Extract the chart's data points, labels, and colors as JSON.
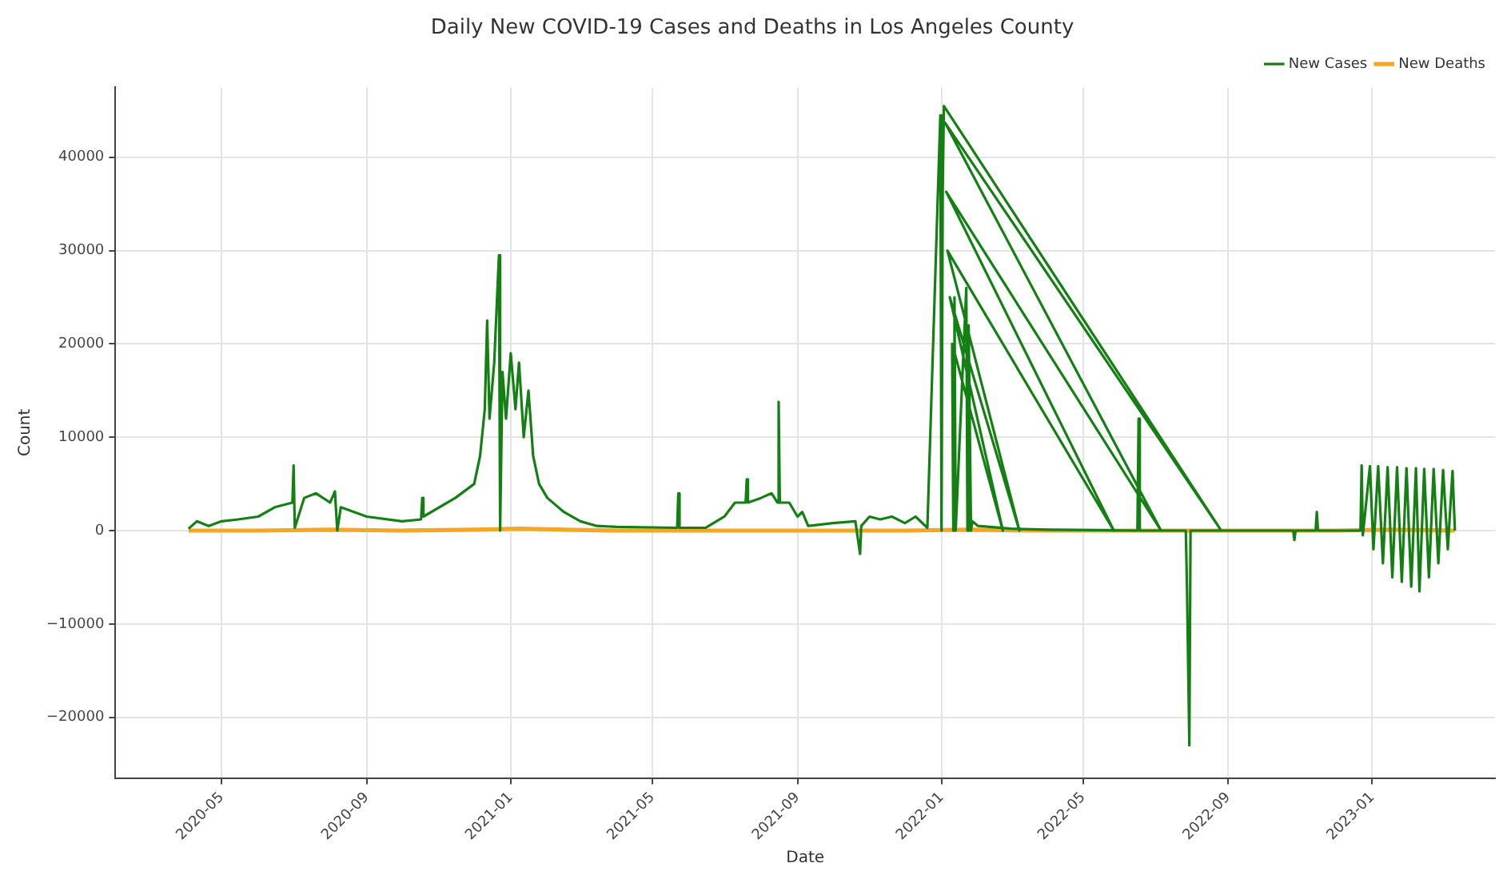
{
  "chart_data": {
    "type": "line",
    "title": "Daily New COVID-19 Cases and Deaths in Los Angeles County",
    "xlabel": "Date",
    "ylabel": "Count",
    "xlim": [
      "2020-02-01",
      "2023-04-15"
    ],
    "xticks": [
      {
        "value": "2020-05",
        "label": "2020-05"
      },
      {
        "value": "2020-09",
        "label": "2020-09"
      },
      {
        "value": "2021-01",
        "label": "2021-01"
      },
      {
        "value": "2021-05",
        "label": "2021-05"
      },
      {
        "value": "2021-09",
        "label": "2021-09"
      },
      {
        "value": "2022-01",
        "label": "2022-01"
      },
      {
        "value": "2022-05",
        "label": "2022-05"
      },
      {
        "value": "2022-09",
        "label": "2022-09"
      },
      {
        "value": "2023-01",
        "label": "2023-01"
      }
    ],
    "ylim": [
      -26500,
      47500
    ],
    "yticks": [
      -20000,
      -10000,
      0,
      10000,
      20000,
      30000,
      40000
    ],
    "grid": true,
    "legend": "top right",
    "series": [
      {
        "name": "New Cases",
        "color": "#148014",
        "x": [
          "2020-04-03",
          "2020-04-10",
          "2020-04-20",
          "2020-05-01",
          "2020-05-15",
          "2020-06-01",
          "2020-06-15",
          "2020-06-30",
          "2020-07-01",
          "2020-07-02",
          "2020-07-10",
          "2020-07-20",
          "2020-08-01",
          "2020-08-05",
          "2020-08-07",
          "2020-08-10",
          "2020-09-01",
          "2020-10-01",
          "2020-10-17",
          "2020-10-18",
          "2020-10-19",
          "2020-11-15",
          "2020-12-01",
          "2020-12-06",
          "2020-12-10",
          "2020-12-12",
          "2020-12-14",
          "2020-12-18",
          "2020-12-22",
          "2020-12-23",
          "2020-12-25",
          "2020-12-28",
          "2021-01-01",
          "2021-01-05",
          "2021-01-08",
          "2021-01-12",
          "2021-01-16",
          "2021-01-20",
          "2021-01-25",
          "2021-02-01",
          "2021-02-15",
          "2021-03-01",
          "2021-03-15",
          "2021-04-01",
          "2021-05-22",
          "2021-05-23",
          "2021-05-24",
          "2021-06-15",
          "2021-07-01",
          "2021-07-10",
          "2021-07-19",
          "2021-07-20",
          "2021-07-21",
          "2021-08-01",
          "2021-08-10",
          "2021-08-15",
          "2021-08-16",
          "2021-08-17",
          "2021-08-25",
          "2021-09-01",
          "2021-09-05",
          "2021-09-10",
          "2021-10-01",
          "2021-10-20",
          "2021-10-24",
          "2021-10-25",
          "2021-11-01",
          "2021-11-10",
          "2021-11-20",
          "2021-12-01",
          "2021-12-10",
          "2021-12-20",
          "2021-12-31",
          "2022-01-01",
          "2022-01-02",
          "2022-01-03",
          "2022-08-26",
          "2022-01-04",
          "2022-07-06",
          "2022-01-05",
          "2022-05-27",
          "2022-01-06",
          "2022-03-08",
          "2022-01-08",
          "2022-02-22",
          "2022-01-10",
          "2022-01-11",
          "2022-01-12",
          "2022-01-13",
          "2022-01-22",
          "2022-01-23",
          "2022-01-24",
          "2022-01-26",
          "2022-01-27",
          "2022-02-01",
          "2022-03-01",
          "2022-04-01",
          "2022-06-16",
          "2022-06-17",
          "2022-06-18",
          "2022-07-27",
          "2022-07-28",
          "2022-07-30",
          "2022-07-31",
          "2022-10-26",
          "2022-10-27",
          "2022-10-28",
          "2022-11-14",
          "2022-11-15",
          "2022-11-16",
          "2022-12-22",
          "2022-12-23",
          "2022-12-24",
          "2022-12-30",
          "2023-01-02",
          "2023-01-06",
          "2023-01-10",
          "2023-01-14",
          "2023-01-18",
          "2023-01-22",
          "2023-01-26",
          "2023-01-30",
          "2023-02-03",
          "2023-02-07",
          "2023-02-10",
          "2023-02-14",
          "2023-02-18",
          "2023-02-22",
          "2023-02-26",
          "2023-03-02",
          "2023-03-06",
          "2023-03-10",
          "2023-03-12"
        ],
        "values": [
          200,
          1000,
          500,
          1000,
          1200,
          1500,
          2500,
          3000,
          7000,
          300,
          3500,
          4000,
          3000,
          4200,
          0,
          2500,
          1500,
          1000,
          1200,
          3500,
          1500,
          3500,
          5000,
          8000,
          13000,
          22500,
          12000,
          18000,
          29500,
          0,
          17000,
          12000,
          19000,
          13000,
          18000,
          10000,
          15000,
          8000,
          5000,
          3500,
          2000,
          1000,
          500,
          400,
          300,
          4000,
          300,
          300,
          1500,
          3000,
          3000,
          5500,
          3000,
          3500,
          4000,
          3000,
          13800,
          3000,
          3000,
          1500,
          2000,
          500,
          800,
          1000,
          -2500,
          500,
          1500,
          1200,
          1500,
          800,
          1500,
          300,
          44500,
          0,
          36000,
          45500,
          0,
          43700,
          0,
          36300,
          0,
          30000,
          0,
          25000,
          0,
          20000,
          0,
          25000,
          0,
          26000,
          0,
          22000,
          0,
          1000,
          500,
          200,
          100,
          0,
          12000,
          0,
          0,
          -6000,
          -23000,
          0,
          0,
          -1000,
          0,
          0,
          2000,
          0,
          0,
          7000,
          -500,
          6900,
          -2000,
          6900,
          -3500,
          6800,
          -5000,
          6800,
          -5500,
          6700,
          -6000,
          6700,
          -6500,
          6600,
          -5000,
          6600,
          -3500,
          6500,
          -2000,
          6400,
          0
        ]
      },
      {
        "name": "New Deaths",
        "color": "#f5a623",
        "x": [
          "2020-04-03",
          "2020-06-01",
          "2020-08-01",
          "2020-10-01",
          "2020-12-01",
          "2021-01-10",
          "2021-02-15",
          "2021-04-01",
          "2021-07-01",
          "2021-09-01",
          "2021-12-01",
          "2022-01-25",
          "2022-04-01",
          "2022-08-01",
          "2022-12-01",
          "2023-01-15",
          "2023-03-12"
        ],
        "values": [
          0,
          0,
          100,
          0,
          100,
          200,
          100,
          0,
          0,
          0,
          0,
          100,
          0,
          0,
          0,
          100,
          0
        ]
      }
    ]
  }
}
